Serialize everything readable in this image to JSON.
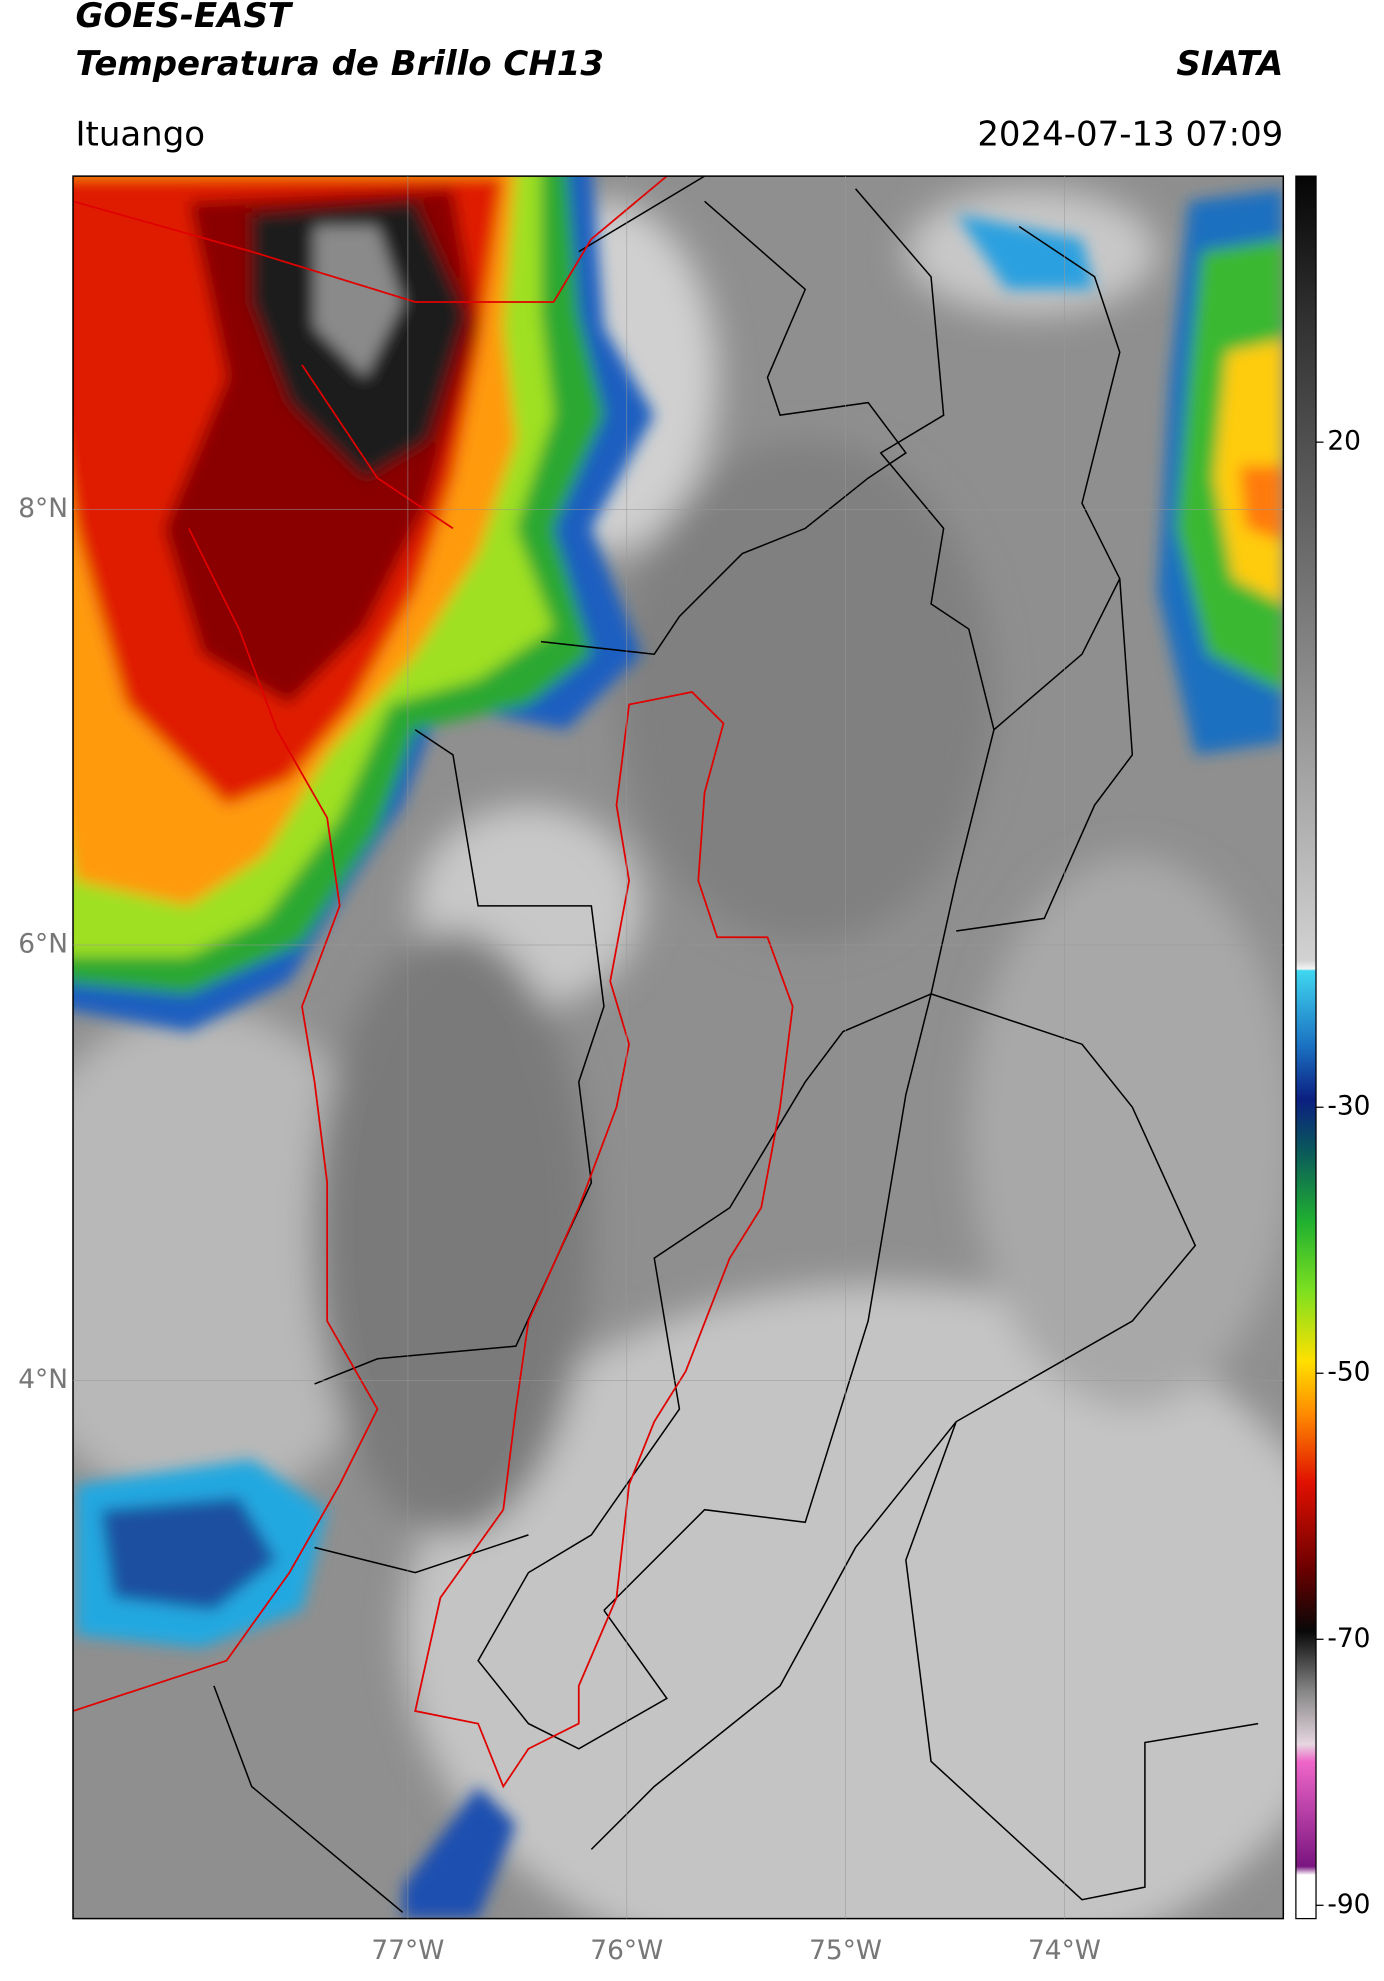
{
  "header": {
    "satellite": "GOES-EAST",
    "product": "Temperatura de Brillo CH13",
    "agency": "SIATA",
    "location": "Ituango",
    "datetime": "2024-07-13 07:09"
  },
  "map": {
    "xlim": [
      -78.53,
      -73.0
    ],
    "ylim": [
      1.53,
      9.53
    ],
    "xticks": [
      {
        "value": -77,
        "label": "77°W"
      },
      {
        "value": -76,
        "label": "76°W"
      },
      {
        "value": -75,
        "label": "75°W"
      },
      {
        "value": -74,
        "label": "74°W"
      }
    ],
    "yticks": [
      {
        "value": 8,
        "label": "8°N"
      },
      {
        "value": 6,
        "label": "6°N"
      },
      {
        "value": 4,
        "label": "4°N"
      }
    ],
    "grid": true
  },
  "colorbar": {
    "clim": [
      -91,
      40
    ],
    "ticks": [
      20,
      -30,
      -50,
      -70,
      -90
    ]
  }
}
